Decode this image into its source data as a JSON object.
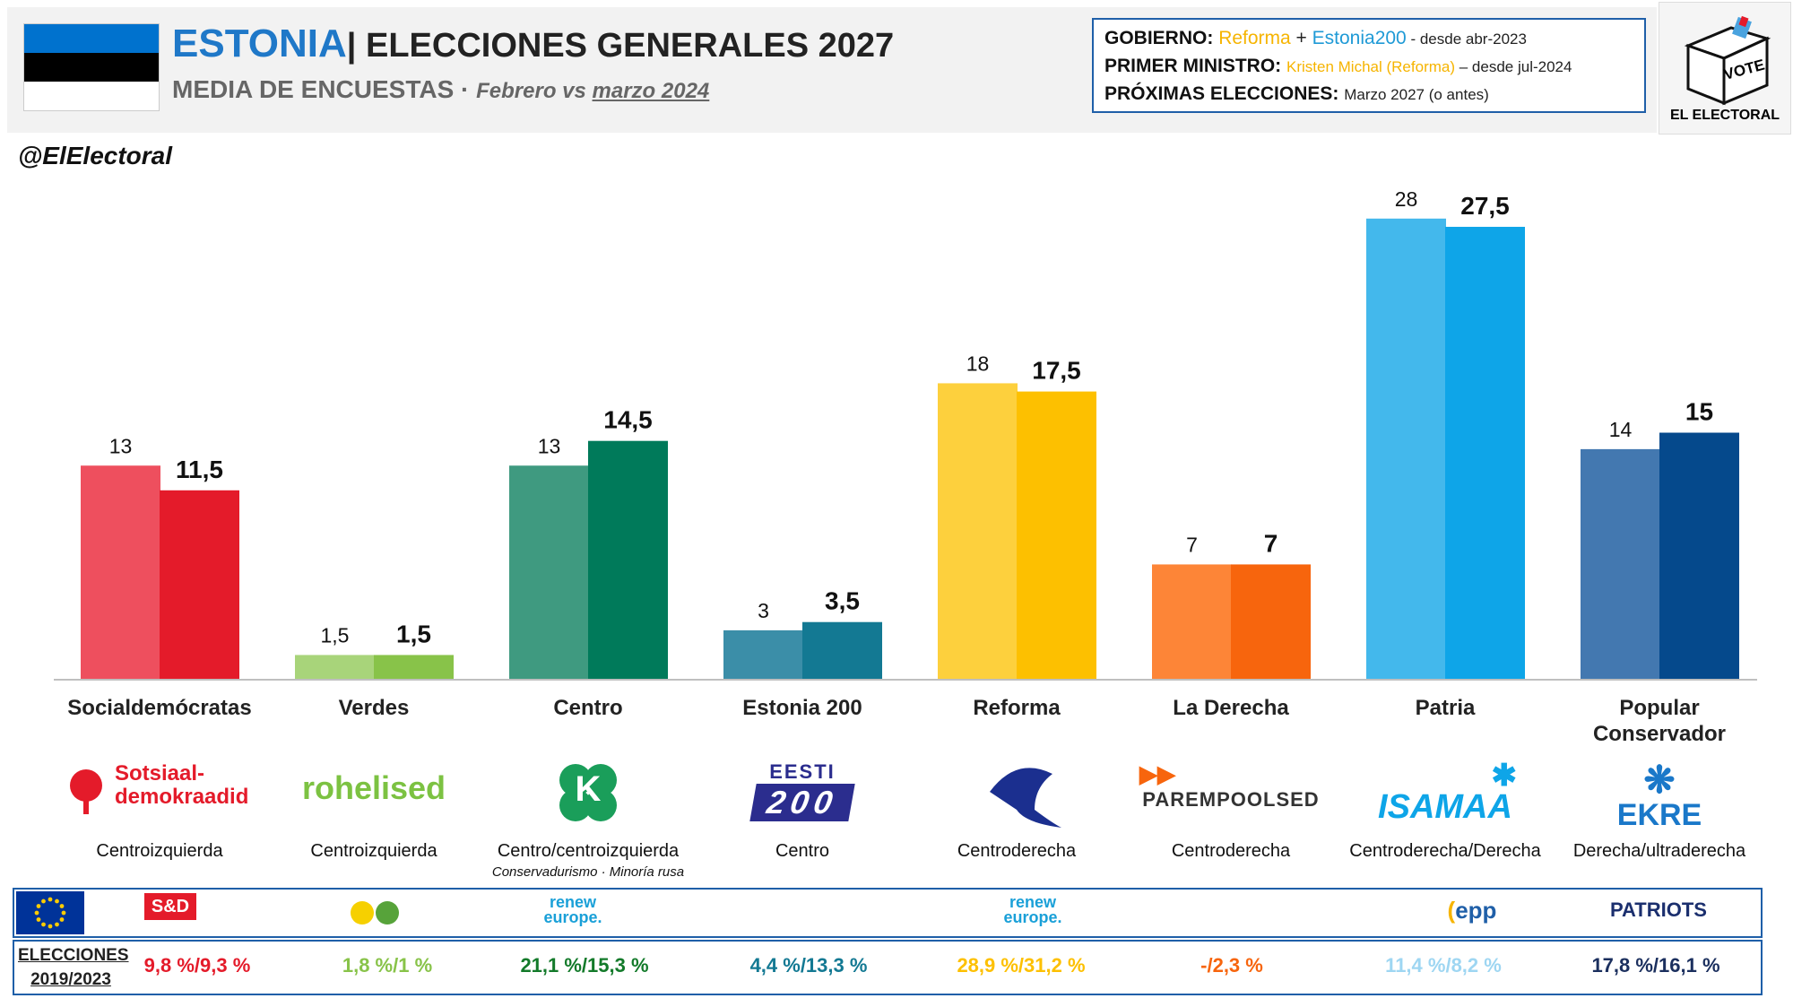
{
  "header": {
    "country": "ESTONIA",
    "title_rest": "| ELECCIONES GENERALES 2027",
    "subtitle_main": "MEDIA DE ENCUESTAS",
    "subtitle_sep": " · ",
    "subtitle_period": "Febrero vs ",
    "subtitle_ref": "marzo 2024",
    "handle": "@ElElectoral",
    "flag_colors": [
      "#0072ce",
      "#000000",
      "#ffffff"
    ]
  },
  "info_box": {
    "gov_label": "GOBIERNO:",
    "gov_party1": "Reforma",
    "gov_plus": " + ",
    "gov_party2": "Estonia200",
    "gov_since": " - desde abr-2023",
    "pm_label": "PRIMER MINISTRO:",
    "pm_name": "Kristen Michal (Reforma)",
    "pm_since": " – desde jul-2024",
    "next_label": "PRÓXIMAS ELECCIONES:",
    "next_value": "Marzo 2027",
    "next_note": " (o antes)"
  },
  "brand": {
    "vote": "VOTE",
    "name": "EL ELECTORAL"
  },
  "chart_data": {
    "type": "bar",
    "categories": [
      "Socialdemócratas",
      "Verdes",
      "Centro",
      "Estonia 200",
      "Reforma",
      "La Derecha",
      "Patria",
      "Popular Conservador"
    ],
    "series": [
      {
        "values": [
          13,
          1.5,
          13,
          3,
          18,
          7,
          28,
          14
        ]
      },
      {
        "values": [
          11.5,
          1.5,
          14.5,
          3.5,
          17.5,
          7,
          27.5,
          15
        ]
      }
    ],
    "value_labels_prev": [
      "13",
      "1,5",
      "13",
      "3",
      "18",
      "7",
      "28",
      "14"
    ],
    "value_labels_curr": [
      "11,5",
      "1,5",
      "14,5",
      "3,5",
      "17,5",
      "7",
      "27,5",
      "15"
    ],
    "colors_prev": [
      "#ee4f5e",
      "#a8d47a",
      "#3f9a80",
      "#3b8ea8",
      "#fdd03d",
      "#fd8537",
      "#43b8ec",
      "#4378b0"
    ],
    "colors_curr": [
      "#e41b2a",
      "#88c349",
      "#007a5a",
      "#137993",
      "#fdc000",
      "#f7650d",
      "#0ea5e8",
      "#05498c"
    ],
    "ylim": [
      0,
      30
    ]
  },
  "parties": [
    {
      "logo": "Sotsiaal-\ndemokraadid",
      "logo_color": "#e41b2a",
      "ideology": "Centroizquierda",
      "ideology_note": "",
      "result": "9,8 %/9,3 %",
      "result_color": "#e41b2a",
      "group": "S&D",
      "group_color": "#e41b2a"
    },
    {
      "logo": "rohelised",
      "logo_color": "#7cc242",
      "ideology": "Centroizquierda",
      "ideology_note": "",
      "result": "1,8 %/1 %",
      "result_color": "#88c349",
      "group": "",
      "group_color": "#57a33a"
    },
    {
      "logo": "K",
      "logo_color": "#1a9e5a",
      "ideology": "Centro/centroizquierda",
      "ideology_note": "Conservadurismo · Minoría rusa",
      "result": "21,1 %/15,3 %",
      "result_color": "#137a2a",
      "group": "renew europe.",
      "group_color": "#1aa0d8"
    },
    {
      "logo": "EESTI 200",
      "logo_color": "#2b2d8e",
      "ideology": "Centro",
      "ideology_note": "",
      "result": "4,4 %/13,3 %",
      "result_color": "#137993",
      "group": "",
      "group_color": "#1aa0d8"
    },
    {
      "logo": "",
      "logo_color": "#1b2f8f",
      "ideology": "Centroderecha",
      "ideology_note": "",
      "result": "28,9 %/31,2 %",
      "result_color": "#fdc000",
      "group": "renew europe.",
      "group_color": "#1aa0d8"
    },
    {
      "logo": "PAREMPOOLSED",
      "logo_color": "#333333",
      "ideology": "Centroderecha",
      "ideology_note": "",
      "result": "-/2,3 %",
      "result_color": "#f7650d",
      "group": "",
      "group_color": "#f7650d"
    },
    {
      "logo": "ISAMAA",
      "logo_color": "#0ea5e8",
      "ideology": "Centroderecha/Derecha",
      "ideology_note": "",
      "result": "11,4 %/8,2 %",
      "result_color": "#9ed6f2",
      "group": "epp",
      "group_color": "#1f5fa8"
    },
    {
      "logo": "EKRE",
      "logo_color": "#1a78c9",
      "ideology": "Derecha/ultraderecha",
      "ideology_note": "",
      "result": "17,8 %/16,1 %",
      "result_color": "#1b2f5e",
      "group": "PATRIOTS",
      "group_color": "#1b2f6e"
    }
  ],
  "bottom": {
    "elections_label": "ELECCIONES",
    "elections_years": "2019/2023"
  }
}
